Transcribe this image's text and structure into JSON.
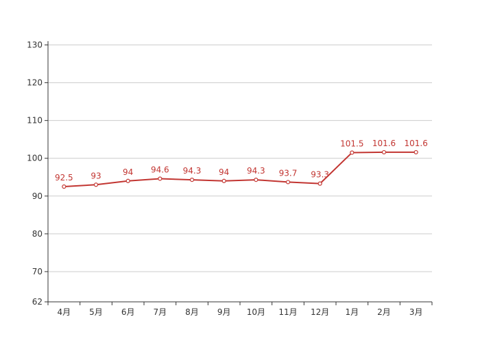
{
  "chart_data": {
    "type": "line",
    "title": "",
    "xlabel": "",
    "ylabel": "",
    "categories": [
      "4月",
      "5月",
      "6月",
      "7月",
      "8月",
      "9月",
      "10月",
      "11月",
      "12月",
      "1月",
      "2月",
      "3月"
    ],
    "series": [
      {
        "values": [
          92.5,
          93,
          94,
          94.6,
          94.3,
          94,
          94.3,
          93.7,
          93.3,
          101.5,
          101.6,
          101.6
        ],
        "labels": [
          "92.5",
          "93",
          "94",
          "94.6",
          "94.3",
          "94",
          "94.3",
          "93.7",
          "93.3",
          "101.5",
          "101.6",
          "101.6"
        ],
        "color": "#c23531"
      }
    ],
    "y_ticks": [
      "62",
      "70",
      "80",
      "90",
      "100",
      "110",
      "120",
      "130"
    ],
    "ylim": [
      62,
      131
    ],
    "grid": true,
    "legend": "none",
    "colors": {
      "line": "#c23531",
      "grid": "#cccccc",
      "axis": "#333333"
    }
  }
}
